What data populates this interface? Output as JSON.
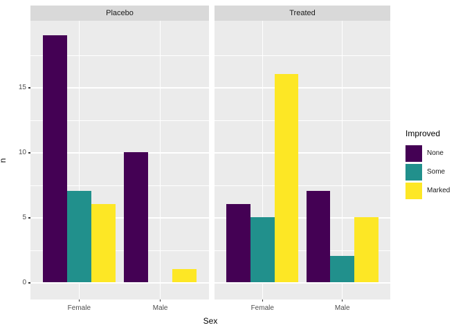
{
  "window": {
    "background": "#ffffff"
  },
  "chart_data": {
    "type": "bar",
    "mode": "grouped-dodge",
    "title": "",
    "xlabel": "Sex",
    "ylabel": "n",
    "categories": [
      "Female",
      "Male"
    ],
    "y_ticks": [
      0,
      5,
      10,
      15
    ],
    "y_minor_ticks": [
      2.5,
      7.5,
      12.5,
      17.5
    ],
    "ylim": [
      -1.3,
      20.1
    ],
    "grid": "on",
    "legend": {
      "title": "Improved",
      "position": "right",
      "items": [
        {
          "label": "None",
          "color": "#440154"
        },
        {
          "label": "Some",
          "color": "#21908C"
        },
        {
          "label": "Marked",
          "color": "#FDE725"
        }
      ]
    },
    "facets": [
      {
        "label": "Placebo",
        "series": [
          {
            "name": "None",
            "color": "#440154",
            "values": [
              19,
              10
            ]
          },
          {
            "name": "Some",
            "color": "#21908C",
            "values": [
              7,
              0
            ]
          },
          {
            "name": "Marked",
            "color": "#FDE725",
            "values": [
              6,
              1
            ]
          }
        ]
      },
      {
        "label": "Treated",
        "series": [
          {
            "name": "None",
            "color": "#440154",
            "values": [
              6,
              7
            ]
          },
          {
            "name": "Some",
            "color": "#21908C",
            "values": [
              5,
              2
            ]
          },
          {
            "name": "Marked",
            "color": "#FDE725",
            "values": [
              16,
              5
            ]
          }
        ]
      }
    ],
    "theme": {
      "panel_bg": "#EBEBEB",
      "strip_bg": "#D9D9D9",
      "grid_color": "#FFFFFF",
      "tick_mark_color": "#333333",
      "tick_label_color": "#4D4D4D",
      "axis_title_color": "#000000",
      "strip_text_color": "#1A1A1A"
    }
  }
}
